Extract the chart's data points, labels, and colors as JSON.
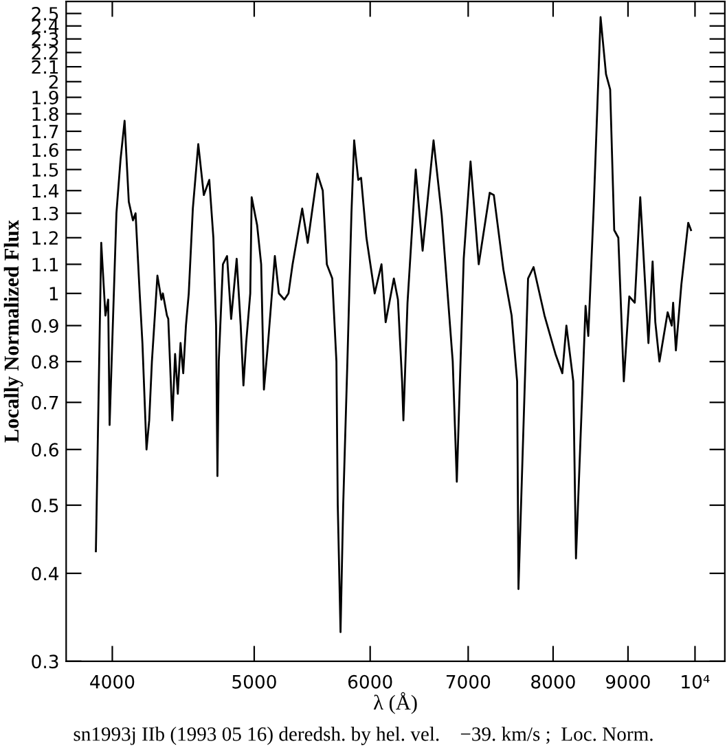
{
  "chart_data": {
    "type": "line",
    "xlabel": "λ (Å)",
    "ylabel": "Locally Normalized Flux",
    "annotations": [
      "sn1993j IIb (1993 05 16) deredsh. by hel. vel.    −39. km/s ;  Loc. Norm."
    ],
    "log": "xy",
    "grid": false,
    "marker": "none",
    "line_style": "solid",
    "xlim": [
      3720,
      10480
    ],
    "ylim": [
      0.3,
      2.6
    ],
    "xticks": [
      4000,
      5000,
      6000,
      7000,
      8000,
      9000,
      {
        "value": 10000,
        "label": "10⁴"
      }
    ],
    "yticks": [
      0.3,
      0.4,
      0.5,
      0.6,
      0.7,
      0.8,
      0.9,
      1,
      1.1,
      1.2,
      1.3,
      1.4,
      1.5,
      1.6,
      1.7,
      1.8,
      1.9,
      2,
      2.1,
      2.2,
      2.3,
      2.4,
      2.5
    ],
    "series": [
      {
        "color": "#000000",
        "x": [
          3898,
          3931,
          3957,
          3974,
          3983,
          4026,
          4052,
          4078,
          4105,
          4132,
          4149,
          4176,
          4194,
          4221,
          4239,
          4257,
          4294,
          4321,
          4331,
          4359,
          4368,
          4396,
          4415,
          4434,
          4453,
          4472,
          4491,
          4511,
          4540,
          4579,
          4619,
          4659,
          4689,
          4709,
          4719,
          4729,
          4760,
          4791,
          4822,
          4864,
          4895,
          4916,
          4937,
          4969,
          4980,
          5023,
          5055,
          5077,
          5110,
          5165,
          5198,
          5243,
          5277,
          5311,
          5392,
          5439,
          5474,
          5522,
          5569,
          5605,
          5653,
          5690,
          5702,
          5727,
          5751,
          5789,
          5826,
          5851,
          5889,
          5915,
          5965,
          6043,
          6108,
          6148,
          6228,
          6268,
          6309,
          6322,
          6363,
          6446,
          6516,
          6629,
          6715,
          6832,
          6876,
          6951,
          7026,
          7117,
          7241,
          7288,
          7399,
          7495,
          7560,
          7576,
          7691,
          7758,
          7893,
          8030,
          8117,
          8169,
          8258,
          8293,
          8419,
          8455,
          8528,
          8620,
          8694,
          8751,
          8807,
          8864,
          8941,
          9018,
          9096,
          9175,
          9294,
          9355,
          9395,
          9456,
          9579,
          9641,
          9662,
          9704,
          9788,
          9894,
          9937
        ],
        "values": [
          0.43,
          1.18,
          0.93,
          0.98,
          0.65,
          1.3,
          1.55,
          1.76,
          1.35,
          1.27,
          1.3,
          1.0,
          0.85,
          0.6,
          0.66,
          0.8,
          1.06,
          0.98,
          1.0,
          0.93,
          0.92,
          0.66,
          0.82,
          0.72,
          0.85,
          0.77,
          0.9,
          1.0,
          1.32,
          1.63,
          1.38,
          1.45,
          1.2,
          0.9,
          0.55,
          0.8,
          1.1,
          1.13,
          0.92,
          1.12,
          0.9,
          0.74,
          0.85,
          1.0,
          1.37,
          1.25,
          1.1,
          0.73,
          0.85,
          1.13,
          1.0,
          0.98,
          1.0,
          1.1,
          1.32,
          1.18,
          1.3,
          1.48,
          1.4,
          1.1,
          1.05,
          0.8,
          0.5,
          0.33,
          0.5,
          0.8,
          1.3,
          1.65,
          1.45,
          1.46,
          1.2,
          1.0,
          1.1,
          0.91,
          1.05,
          0.98,
          0.75,
          0.66,
          0.97,
          1.5,
          1.15,
          1.65,
          1.29,
          0.8,
          0.54,
          1.12,
          1.54,
          1.1,
          1.39,
          1.38,
          1.08,
          0.93,
          0.75,
          0.38,
          1.05,
          1.09,
          0.93,
          0.82,
          0.77,
          0.9,
          0.75,
          0.42,
          0.96,
          0.87,
          1.33,
          2.47,
          2.05,
          1.95,
          1.23,
          1.2,
          0.75,
          0.99,
          0.97,
          1.37,
          0.85,
          1.11,
          0.91,
          0.8,
          0.94,
          0.9,
          0.97,
          0.83,
          1.03,
          1.26,
          1.23
        ]
      }
    ]
  }
}
